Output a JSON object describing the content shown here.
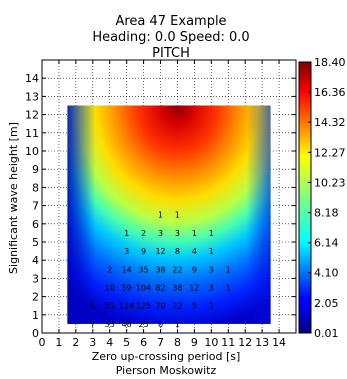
{
  "chart_data": {
    "type": "heatmap",
    "title_lines": [
      "Area 47 Example",
      "Heading: 0.0 Speed: 0.0",
      "PITCH"
    ],
    "xlabel_lines": [
      "Zero up-crossing period [s]",
      "Pierson Moskowitz"
    ],
    "ylabel": "Significant wave height [m]",
    "xlim": [
      0,
      15
    ],
    "ylim": [
      0,
      15
    ],
    "x_ticks": [
      0,
      1,
      2,
      3,
      4,
      5,
      6,
      7,
      8,
      9,
      10,
      11,
      12,
      13,
      14
    ],
    "x_tick_labels": [
      "0",
      "1",
      "2",
      "3",
      "4",
      "5",
      "6",
      "7",
      "8",
      "9",
      "10",
      "11",
      "12",
      "13",
      "14"
    ],
    "y_ticks": [
      0,
      1,
      2,
      3,
      4,
      5,
      6,
      7,
      8,
      9,
      10,
      11,
      12,
      13,
      14
    ],
    "y_tick_labels": [
      "0",
      "1",
      "2",
      "3",
      "4",
      "5",
      "6",
      "7",
      "8",
      "9",
      "10",
      "11",
      "12",
      "13",
      "14"
    ],
    "grid": true,
    "field_extent": {
      "x": [
        1.5,
        13.5
      ],
      "y": [
        0.5,
        12.5
      ]
    },
    "peak_location": {
      "x": 8,
      "y": 12.5
    },
    "colorbar": {
      "ticks": [
        18.4,
        16.36,
        14.32,
        12.27,
        10.23,
        8.18,
        6.14,
        4.1,
        2.05,
        0.01
      ],
      "tick_labels": [
        "18.40",
        "16.36",
        "14.32",
        "12.27",
        "10.23",
        "8.18",
        "6.14",
        "4.10",
        "2.05",
        "0.01"
      ],
      "min": 0.01,
      "max": 18.4,
      "colormap": "jet"
    },
    "occurrence_labels": [
      {
        "x": 7,
        "y": 6.5,
        "text": "1"
      },
      {
        "x": 8,
        "y": 6.5,
        "text": "1"
      },
      {
        "x": 5,
        "y": 5.5,
        "text": "1"
      },
      {
        "x": 6,
        "y": 5.5,
        "text": "2"
      },
      {
        "x": 7,
        "y": 5.5,
        "text": "3"
      },
      {
        "x": 8,
        "y": 5.5,
        "text": "3"
      },
      {
        "x": 9,
        "y": 5.5,
        "text": "1"
      },
      {
        "x": 10,
        "y": 5.5,
        "text": "1"
      },
      {
        "x": 5,
        "y": 4.5,
        "text": "3"
      },
      {
        "x": 6,
        "y": 4.5,
        "text": "9"
      },
      {
        "x": 7,
        "y": 4.5,
        "text": "12"
      },
      {
        "x": 8,
        "y": 4.5,
        "text": "8"
      },
      {
        "x": 9,
        "y": 4.5,
        "text": "4"
      },
      {
        "x": 10,
        "y": 4.5,
        "text": "1"
      },
      {
        "x": 4,
        "y": 3.5,
        "text": "2"
      },
      {
        "x": 5,
        "y": 3.5,
        "text": "14"
      },
      {
        "x": 6,
        "y": 3.5,
        "text": "35"
      },
      {
        "x": 7,
        "y": 3.5,
        "text": "38"
      },
      {
        "x": 8,
        "y": 3.5,
        "text": "22"
      },
      {
        "x": 9,
        "y": 3.5,
        "text": "9"
      },
      {
        "x": 10,
        "y": 3.5,
        "text": "3"
      },
      {
        "x": 11,
        "y": 3.5,
        "text": "1"
      },
      {
        "x": 4,
        "y": 2.5,
        "text": "10"
      },
      {
        "x": 5,
        "y": 2.5,
        "text": "59"
      },
      {
        "x": 6,
        "y": 2.5,
        "text": "104"
      },
      {
        "x": 7,
        "y": 2.5,
        "text": "82"
      },
      {
        "x": 8,
        "y": 2.5,
        "text": "38"
      },
      {
        "x": 9,
        "y": 2.5,
        "text": "12"
      },
      {
        "x": 10,
        "y": 2.5,
        "text": "3"
      },
      {
        "x": 11,
        "y": 2.5,
        "text": "1"
      },
      {
        "x": 3,
        "y": 1.5,
        "text": "5"
      },
      {
        "x": 4,
        "y": 1.5,
        "text": "55"
      },
      {
        "x": 5,
        "y": 1.5,
        "text": "124"
      },
      {
        "x": 6,
        "y": 1.5,
        "text": "125"
      },
      {
        "x": 7,
        "y": 1.5,
        "text": "70"
      },
      {
        "x": 8,
        "y": 1.5,
        "text": "22"
      },
      {
        "x": 9,
        "y": 1.5,
        "text": "5"
      },
      {
        "x": 10,
        "y": 1.5,
        "text": "1"
      },
      {
        "x": 3,
        "y": 0.5,
        "text": "7"
      },
      {
        "x": 4,
        "y": 0.5,
        "text": "33"
      },
      {
        "x": 5,
        "y": 0.5,
        "text": "48"
      },
      {
        "x": 6,
        "y": 0.5,
        "text": "25"
      },
      {
        "x": 7,
        "y": 0.5,
        "text": "6"
      },
      {
        "x": 8,
        "y": 0.5,
        "text": "1"
      }
    ]
  }
}
